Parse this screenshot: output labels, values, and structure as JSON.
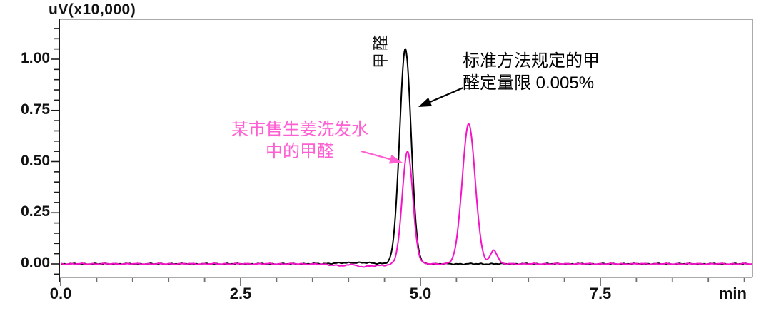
{
  "chart_data": {
    "type": "line",
    "title": "uV(x10,000)",
    "xlabel": "min",
    "ylabel": "uV(x10,000)",
    "x_axis": {
      "unit_label": "min",
      "range_min": [
        0,
        9.61
      ],
      "major_tick_values": [
        0,
        2.5,
        5.0,
        7.5
      ],
      "major_tick_labels": [
        "0.0",
        "2.5",
        "5.0",
        "7.5"
      ],
      "minor_step": 0.5
    },
    "y_axis": {
      "unit_label": "uV(x10,000)",
      "display_range": [
        -0.07,
        1.19
      ],
      "major_tick_values": [
        0,
        0.25,
        0.5,
        0.75,
        1.0
      ],
      "major_tick_labels": [
        "0.00",
        "0.25",
        "0.50",
        "0.75",
        "1.00"
      ],
      "minor_step": 0.05
    },
    "grid": "off",
    "legend": "none",
    "series": [
      {
        "id": "standard-loq-trace",
        "name": "标准方法规定的甲醛定量限 0.005%",
        "color": "#000000",
        "noise_amp": 0.0035,
        "peaks": [
          {
            "center_min": 4.79,
            "height": 1.05,
            "sigma_min": 0.08
          },
          {
            "center_min": 4.1,
            "height": 0.006,
            "sigma_min": 0.25
          }
        ]
      },
      {
        "id": "shampoo-sample-trace",
        "name": "某市售生姜洗发水中的甲醛",
        "color": "#F414C8",
        "noise_amp": 0.0035,
        "peaks": [
          {
            "center_min": 4.82,
            "height": 0.551,
            "sigma_min": 0.073
          },
          {
            "center_min": 5.67,
            "height": 0.683,
            "sigma_min": 0.09
          },
          {
            "center_min": 6.02,
            "height": 0.068,
            "sigma_min": 0.048
          },
          {
            "center_min": 4.05,
            "height": 0.012,
            "sigma_min": 0.04
          },
          {
            "center_min": 4.15,
            "height": -0.013,
            "sigma_min": 0.28
          }
        ]
      }
    ],
    "peak_label": "甲醛",
    "annotations": [
      {
        "id": "standard-note",
        "text_lines": [
          "标准方法规定的甲",
          "醛定量限 0.005%"
        ],
        "color": "#000000"
      },
      {
        "id": "sample-note",
        "text_lines": [
          "某市售生姜洗发水",
          "中的甲醛"
        ],
        "color": "#FF5FD2"
      }
    ]
  },
  "colors": {
    "frame_gray": "#ABABAB",
    "x_tick_gray": "#6E6E6E",
    "y_axis_black": "#1A1A1A",
    "text_black": "#111111"
  }
}
